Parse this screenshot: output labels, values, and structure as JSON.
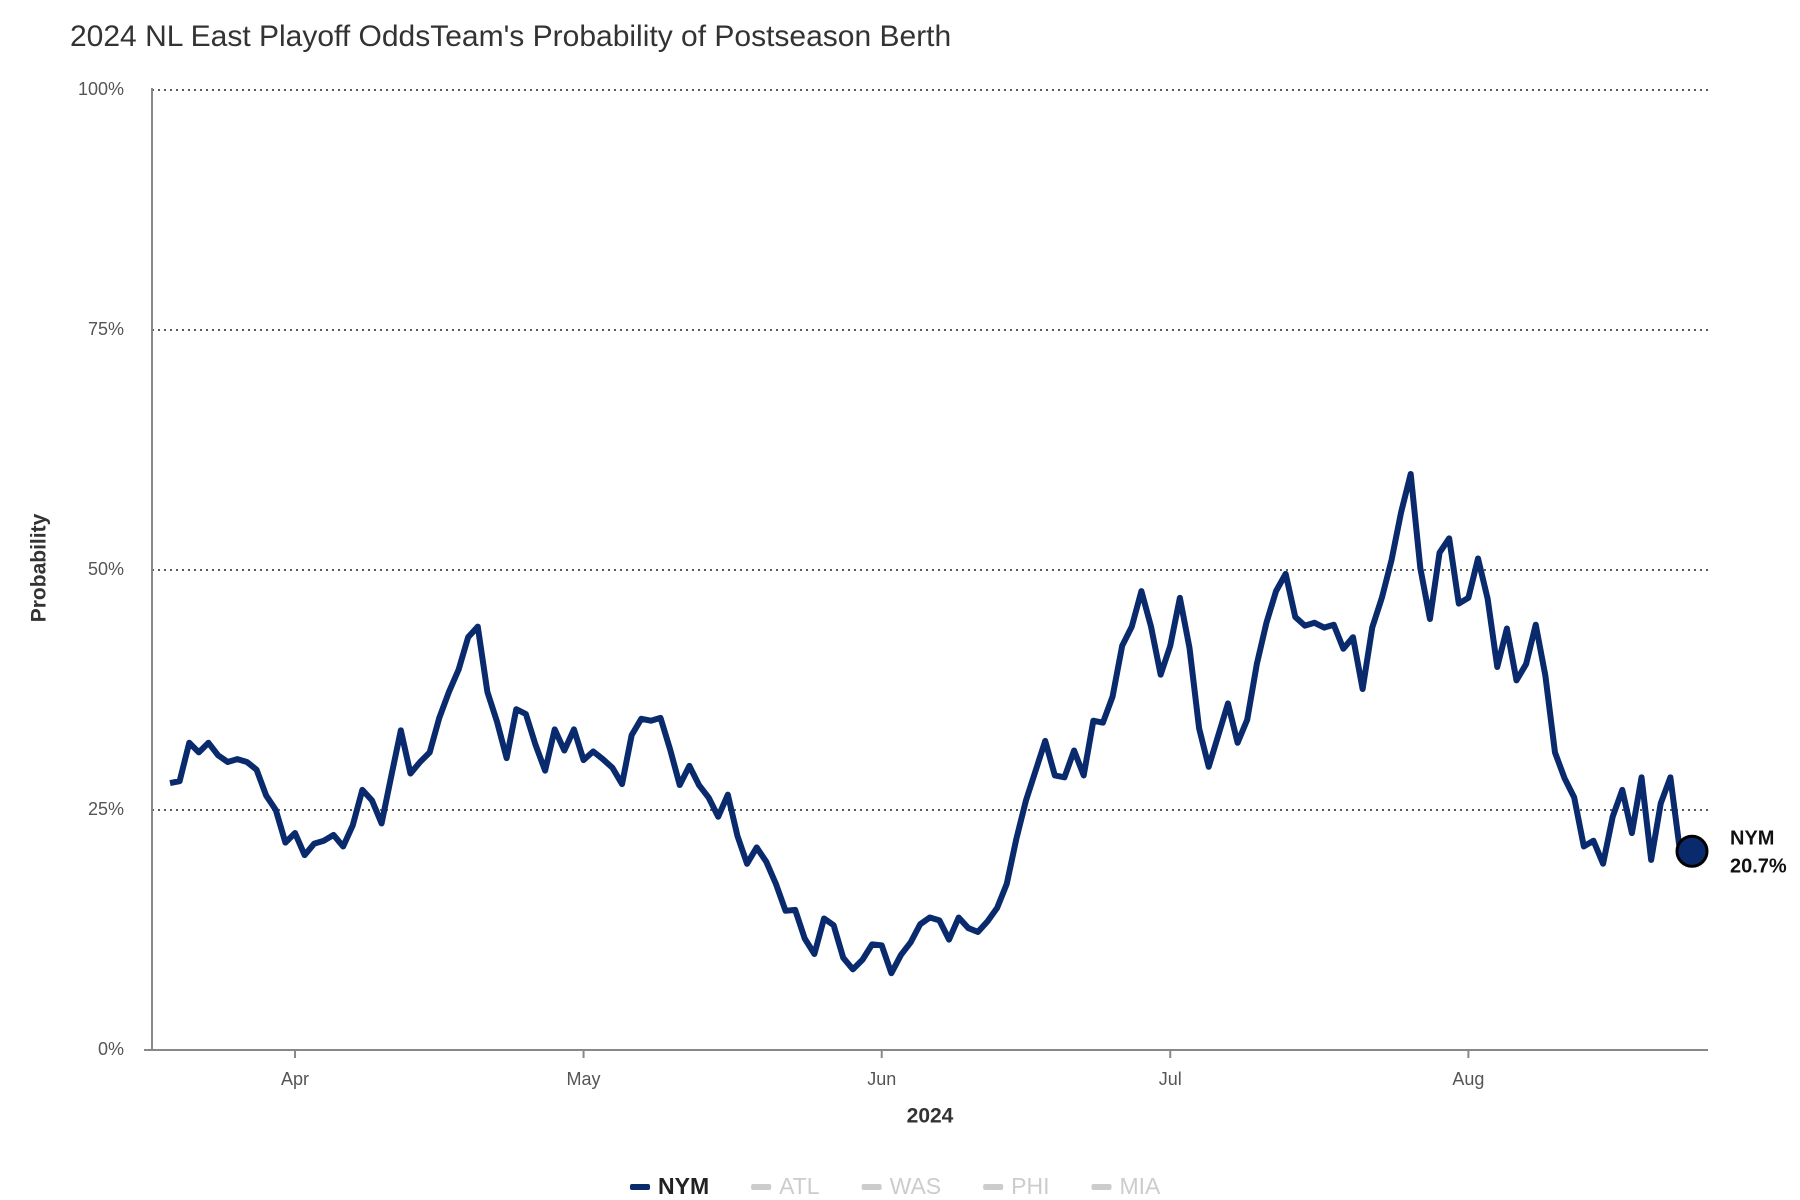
{
  "chart_data": {
    "type": "line",
    "title": "2024 NL East Playoff OddsTeam's Probability of Postseason Berth",
    "x_label": "2024",
    "y_label": "Probability",
    "categories": [
      null,
      null,
      null,
      null,
      null,
      null,
      null,
      null,
      null,
      null,
      null,
      null,
      null,
      "Apr",
      null,
      null,
      null,
      null,
      null,
      null,
      null,
      null,
      null,
      null,
      null,
      null,
      null,
      null,
      null,
      null,
      null,
      null,
      null,
      null,
      null,
      null,
      null,
      null,
      null,
      null,
      null,
      null,
      null,
      "May",
      null,
      null,
      null,
      null,
      null,
      null,
      null,
      null,
      null,
      null,
      null,
      null,
      null,
      null,
      null,
      null,
      null,
      null,
      null,
      null,
      null,
      null,
      null,
      null,
      null,
      null,
      null,
      null,
      null,
      null,
      "Jun",
      null,
      null,
      null,
      null,
      null,
      null,
      null,
      null,
      null,
      null,
      null,
      null,
      null,
      null,
      null,
      null,
      null,
      null,
      null,
      null,
      null,
      null,
      null,
      null,
      null,
      null,
      null,
      null,
      null,
      "Jul",
      null,
      null,
      null,
      null,
      null,
      null,
      null,
      null,
      null,
      null,
      null,
      null,
      null,
      null,
      null,
      null,
      null,
      null,
      null,
      null,
      null,
      null,
      null,
      null,
      null,
      null,
      null,
      null,
      null,
      null,
      "Aug",
      null,
      null,
      null,
      null,
      null,
      null,
      null,
      null,
      null,
      null,
      null,
      null,
      null,
      null,
      null,
      null,
      null,
      null,
      null,
      null,
      null,
      null
    ],
    "series": [
      {
        "name": "NYM",
        "color": "#0a2a6e",
        "values": [
          27.8,
          28,
          32,
          31,
          32,
          30.7,
          30,
          30.3,
          30,
          29.2,
          26.5,
          25,
          21.6,
          22.6,
          20.3,
          21.5,
          21.8,
          22.4,
          21.2,
          23.4,
          27.1,
          26,
          23.6,
          28.5,
          33.3,
          28.8,
          30,
          31,
          34.6,
          37.3,
          39.6,
          43,
          44.1,
          37.3,
          34.2,
          30.4,
          35.5,
          35,
          31.8,
          29.1,
          33.4,
          31.2,
          33.4,
          30.2,
          31.1,
          30.3,
          29.4,
          27.7,
          32.8,
          34.5,
          34.3,
          34.6,
          31.3,
          27.6,
          29.6,
          27.6,
          26.3,
          24.3,
          26.6,
          22.3,
          19.4,
          21.1,
          19.6,
          17.3,
          14.5,
          14.6,
          11.6,
          10,
          13.7,
          13,
          9.6,
          8.4,
          9.4,
          11,
          10.9,
          8,
          9.9,
          11.2,
          13.1,
          13.8,
          13.5,
          11.5,
          13.8,
          12.7,
          12.3,
          13.4,
          14.8,
          17.3,
          22,
          26,
          29.1,
          32.2,
          28.6,
          28.4,
          31.2,
          28.6,
          34.3,
          34.1,
          36.8,
          42.1,
          44.1,
          47.8,
          44.1,
          39.1,
          42.1,
          47.1,
          41.9,
          33.5,
          29.5,
          32.8,
          36.1,
          32,
          34.4,
          40.2,
          44.5,
          47.8,
          49.6,
          45.1,
          44.2,
          44.5,
          44,
          44.3,
          41.8,
          43,
          37.6,
          44,
          47.1,
          51,
          56,
          60,
          50.2,
          44.9,
          51.8,
          53.3,
          46.5,
          47.1,
          51.2,
          47,
          39.9,
          43.9,
          38.5,
          40.2,
          44.3,
          39,
          31,
          28.3,
          26.3,
          21.2,
          21.8,
          19.4,
          24.3,
          27.1,
          22.6,
          28.4,
          19.8,
          25.7,
          28.4,
          20.7
        ],
        "last_value_label": "20.7%"
      }
    ],
    "legend": [
      "NYM",
      "ATL",
      "WAS",
      "PHI",
      "MIA"
    ],
    "legend_inactive_color": "#cccccc",
    "ylim": [
      0,
      100
    ],
    "yticks": [
      {
        "value": 0,
        "label": "0%"
      },
      {
        "value": 25,
        "label": "25%"
      },
      {
        "value": 50,
        "label": "50%"
      },
      {
        "value": 75,
        "label": "75%"
      },
      {
        "value": 100,
        "label": "100%"
      }
    ],
    "grid": true
  }
}
